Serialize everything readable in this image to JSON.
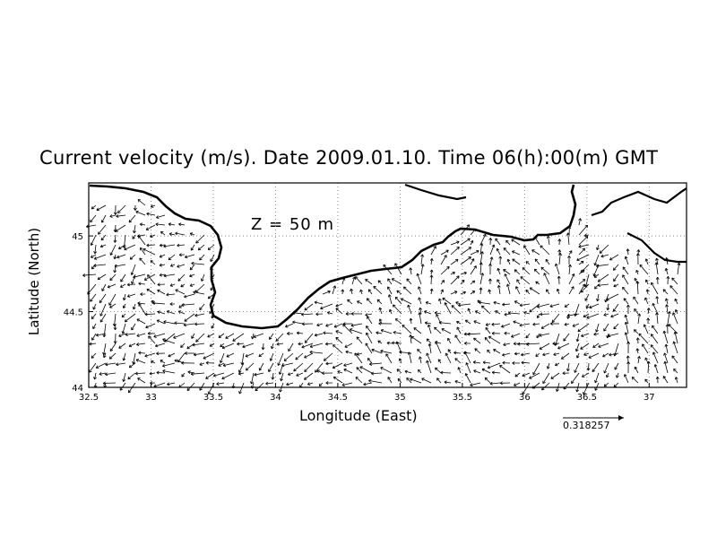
{
  "title": "Current velocity (m/s). Date 2009.01.10. Time 06(h):00(m) GMT",
  "depth_label": "Z = 50 m",
  "axes": {
    "xlabel": "Longitude (East)",
    "ylabel": "Latitude (North)",
    "xlim": [
      32.5,
      37.3
    ],
    "ylim": [
      44.0,
      45.35
    ],
    "xticks": [
      "32.5",
      "33",
      "33.5",
      "34",
      "34.5",
      "35",
      "35.5",
      "36",
      "36.5",
      "37"
    ],
    "yticks": [
      "44",
      "44.5",
      "45"
    ]
  },
  "reference_vector": {
    "value": "0.318257",
    "unit": "m/s"
  },
  "map": {
    "region": "Crimea coast, Black Sea",
    "grid": "dotted"
  }
}
